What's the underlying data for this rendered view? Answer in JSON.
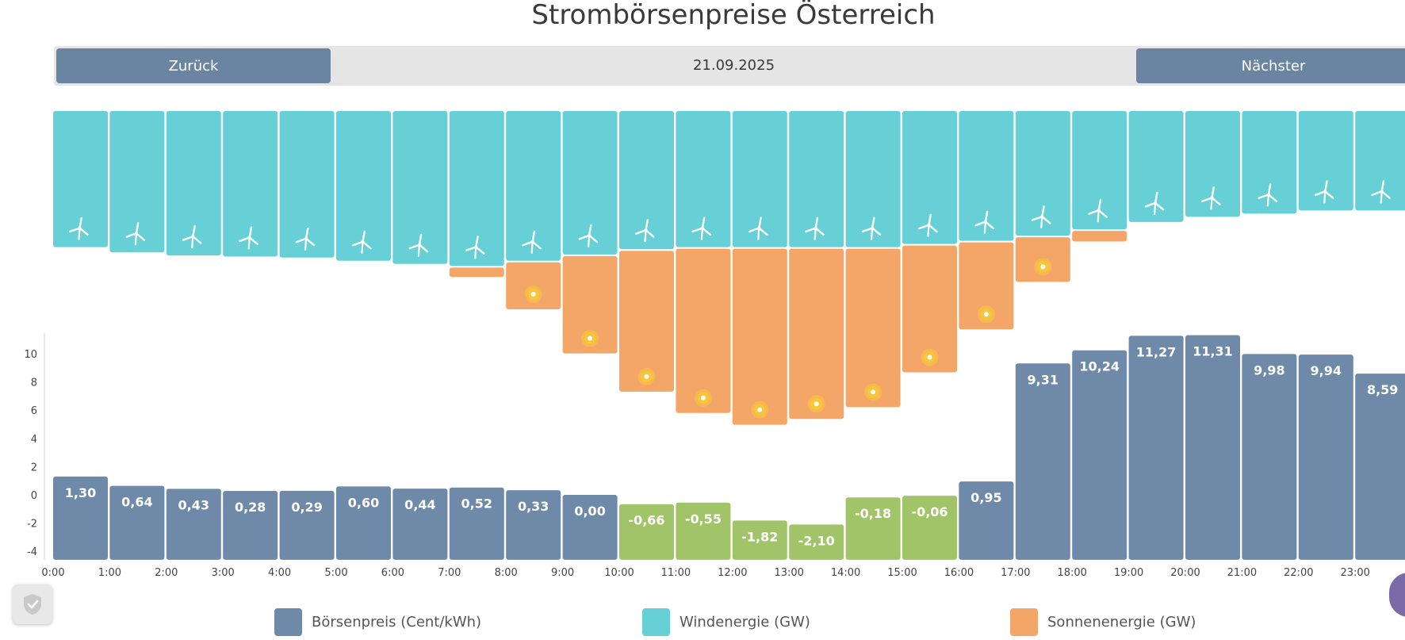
{
  "page": {
    "title": "Strombörsenpreise Österreich",
    "nav": {
      "back_label": "Zurück",
      "date": "21.09.2025",
      "next_label": "Nächster"
    }
  },
  "colors": {
    "price": "#6f8aa9",
    "price_negative": "#a2c468",
    "wind": "#66d0d6",
    "solar": "#f3a668",
    "sun_icon": "#f7c63a"
  },
  "icons": [
    "wind-turbine-icon",
    "sun-icon",
    "shield-check-icon"
  ],
  "chart_data": {
    "type": "bar",
    "categories": [
      "0:00",
      "1:00",
      "2:00",
      "3:00",
      "4:00",
      "5:00",
      "6:00",
      "7:00",
      "8:00",
      "9:00",
      "10:00",
      "11:00",
      "12:00",
      "13:00",
      "14:00",
      "15:00",
      "16:00",
      "17:00",
      "18:00",
      "19:00",
      "20:00",
      "21:00",
      "22:00",
      "23:00"
    ],
    "series": [
      {
        "name": "Börsenpreis (Cent/kWh)",
        "values": [
          1.3,
          0.64,
          0.43,
          0.28,
          0.29,
          0.6,
          0.44,
          0.52,
          0.33,
          0.0,
          -0.66,
          -0.55,
          -1.82,
          -2.1,
          -0.18,
          -0.06,
          0.95,
          9.31,
          10.24,
          11.27,
          11.31,
          9.98,
          9.94,
          8.59
        ],
        "labels": [
          "1,30",
          "0,64",
          "0,43",
          "0,28",
          "0,29",
          "0,60",
          "0,44",
          "0,52",
          "0,33",
          "0,00",
          "-0,66",
          "-0,55",
          "-1,82",
          "-2,10",
          "-0,18",
          "-0,06",
          "0,95",
          "9,31",
          "10,24",
          "11,27",
          "11,31",
          "9,98",
          "9,94",
          "8,59"
        ]
      },
      {
        "name": "Windenergie (GW)",
        "values": [
          1.3,
          1.35,
          1.38,
          1.39,
          1.4,
          1.43,
          1.46,
          1.48,
          1.43,
          1.37,
          1.32,
          1.3,
          1.3,
          1.3,
          1.3,
          1.27,
          1.24,
          1.19,
          1.13,
          1.06,
          1.01,
          0.98,
          0.95,
          0.95
        ]
      },
      {
        "name": "Sonnenenergie (GW)",
        "values": [
          0,
          0,
          0,
          0,
          0,
          0,
          0,
          0.08,
          0.4,
          0.83,
          1.2,
          1.4,
          1.5,
          1.45,
          1.35,
          1.08,
          0.74,
          0.38,
          0.09,
          0,
          0,
          0,
          0,
          0
        ]
      }
    ],
    "yticks": [
      "10",
      "8",
      "6",
      "4",
      "2",
      "0",
      "-2",
      "-4"
    ],
    "ylim": [
      -4.6,
      11.6
    ],
    "grid": false,
    "legend_position": "bottom"
  }
}
